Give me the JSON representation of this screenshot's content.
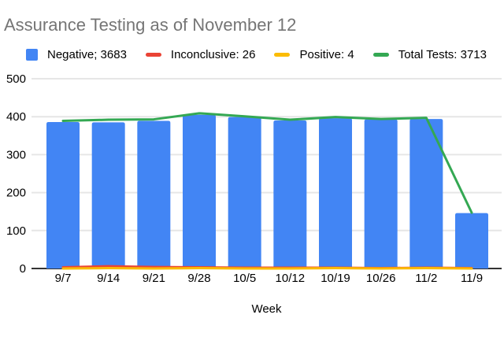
{
  "title": "Assurance Testing as of November 12",
  "legend": {
    "items": [
      {
        "label": "Negative; 3683",
        "color": "#4285F4",
        "marker": "square"
      },
      {
        "label": "Inconclusive: 26",
        "color": "#EA4335",
        "marker": "dash"
      },
      {
        "label": "Positive: 4",
        "color": "#FBBC04",
        "marker": "dash"
      },
      {
        "label": "Total Tests: 3713",
        "color": "#34A853",
        "marker": "dash"
      }
    ]
  },
  "axes": {
    "x_title": "Week",
    "y_ticks": [
      0,
      100,
      200,
      300,
      400,
      500
    ]
  },
  "colors": {
    "background": "#FFFFFF",
    "title": "#757575",
    "text": "#000000",
    "grid": "#E6E6E6",
    "axis": "#333333",
    "blue": "#4285F4",
    "red": "#EA4335",
    "orange": "#FBBC04",
    "green": "#34A853"
  },
  "chart_data": {
    "type": "combo",
    "title": "Assurance Testing as of November 12",
    "xlabel": "Week",
    "ylabel": "",
    "ylim": [
      0,
      500
    ],
    "grid": true,
    "legend_position": "top",
    "categories": [
      "9/7",
      "9/14",
      "9/21",
      "9/28",
      "10/5",
      "10/12",
      "10/19",
      "10/26",
      "11/2",
      "11/9"
    ],
    "series": [
      {
        "name": "Negative",
        "type": "bar",
        "color": "#4285F4",
        "total": 3683,
        "values": [
          386,
          385,
          389,
          405,
          399,
          390,
          396,
          393,
          394,
          146
        ]
      },
      {
        "name": "Inconclusive",
        "type": "line",
        "color": "#EA4335",
        "total": 26,
        "values": [
          3,
          6,
          4,
          3,
          2,
          2,
          2,
          1,
          2,
          1
        ]
      },
      {
        "name": "Positive",
        "type": "line",
        "color": "#FBBC04",
        "total": 4,
        "values": [
          0,
          1,
          0,
          1,
          0,
          0,
          1,
          0,
          1,
          0
        ]
      },
      {
        "name": "Total Tests",
        "type": "line",
        "color": "#34A853",
        "total": 3713,
        "values": [
          389,
          392,
          393,
          409,
          401,
          392,
          399,
          394,
          397,
          147
        ]
      }
    ]
  }
}
